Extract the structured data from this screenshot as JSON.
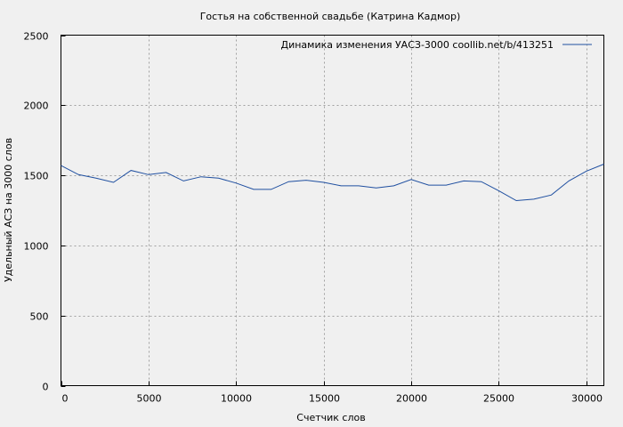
{
  "chart_data": {
    "type": "line",
    "title": "Гостья на собственной свадьбе (Катрина Кадмор)",
    "xlabel": "Счетчик слов",
    "ylabel": "Удельный АСЗ на 3000 слов",
    "xlim": [
      0,
      31000
    ],
    "ylim": [
      0,
      2500
    ],
    "xticks": [
      0,
      5000,
      10000,
      15000,
      20000,
      25000,
      30000
    ],
    "yticks": [
      0,
      500,
      1000,
      1500,
      2000,
      2500
    ],
    "grid": true,
    "legend_position": "top-right",
    "colors": {
      "series": "#1f4fa0",
      "grid": "#a0a0a0",
      "background": "#f0f0f0"
    },
    "series": [
      {
        "name": "Динамика изменения УАСЗ-3000  coollib.net/b/413251",
        "x": [
          0,
          1000,
          2000,
          3000,
          4000,
          5000,
          6000,
          7000,
          8000,
          9000,
          10000,
          11000,
          12000,
          13000,
          14000,
          15000,
          16000,
          17000,
          18000,
          19000,
          20000,
          21000,
          22000,
          23000,
          24000,
          25000,
          26000,
          27000,
          28000,
          29000,
          30000,
          31000
        ],
        "y": [
          1570,
          1505,
          1480,
          1450,
          1535,
          1505,
          1520,
          1460,
          1490,
          1480,
          1445,
          1400,
          1400,
          1455,
          1465,
          1450,
          1425,
          1425,
          1410,
          1425,
          1470,
          1430,
          1430,
          1460,
          1455,
          1390,
          1320,
          1330,
          1360,
          1460,
          1530,
          1580
        ]
      }
    ]
  }
}
